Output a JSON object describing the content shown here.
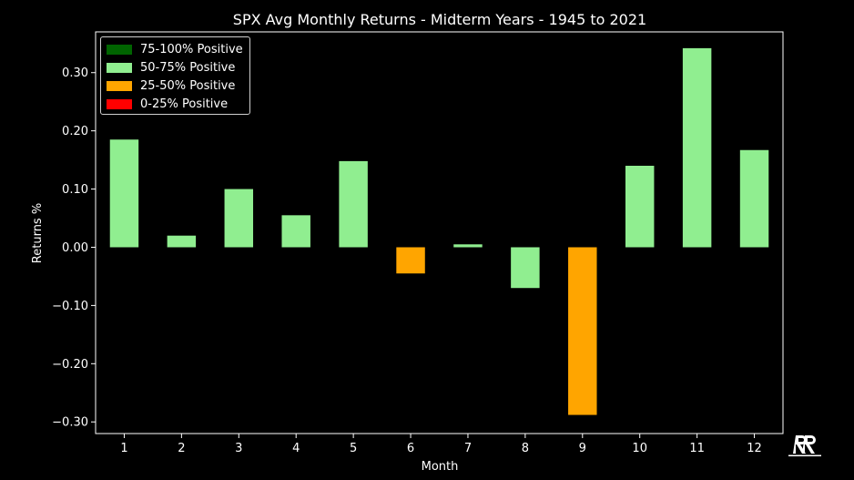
{
  "chart_data": {
    "type": "bar",
    "title": "SPX Avg Monthly Returns - Midterm Years - 1945 to 2021",
    "xlabel": "Month",
    "ylabel": "Returns %",
    "categories": [
      "1",
      "2",
      "3",
      "4",
      "5",
      "6",
      "7",
      "8",
      "9",
      "10",
      "11",
      "12"
    ],
    "values": [
      0.185,
      0.02,
      0.1,
      0.055,
      0.148,
      -0.045,
      0.005,
      -0.07,
      -0.288,
      0.14,
      0.342,
      0.167
    ],
    "bar_colors": [
      "#90ee90",
      "#90ee90",
      "#90ee90",
      "#90ee90",
      "#90ee90",
      "#ffa500",
      "#90ee90",
      "#90ee90",
      "#ffa500",
      "#90ee90",
      "#90ee90",
      "#90ee90"
    ],
    "ylim": [
      -0.32,
      0.37
    ],
    "yticks": [
      -0.3,
      -0.2,
      -0.1,
      0.0,
      0.1,
      0.2,
      0.3
    ],
    "ytick_labels": [
      "−0.30",
      "−0.20",
      "−0.10",
      "0.00",
      "0.10",
      "0.20",
      "0.30"
    ],
    "grid": false,
    "legend_position": "top-left",
    "legend": [
      {
        "label": "75-100% Positive",
        "color": "#006400"
      },
      {
        "label": "50-75% Positive",
        "color": "#90ee90"
      },
      {
        "label": "25-50% Positive",
        "color": "#ffa500"
      },
      {
        "label": "0-25% Positive",
        "color": "#ff0000"
      }
    ]
  },
  "watermark": {
    "icon": "rr-logo-icon"
  },
  "colors": {
    "background": "#000000",
    "axes": "#ffffff",
    "text": "#ffffff"
  }
}
